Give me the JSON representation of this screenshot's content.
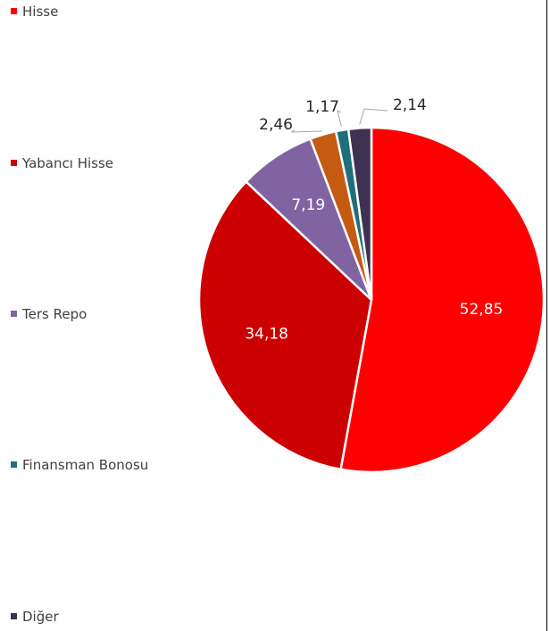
{
  "chart_data": {
    "type": "pie",
    "title": "",
    "legend_position": "left",
    "start_angle_deg": 0,
    "direction": "clockwise",
    "slices": [
      {
        "label": "Hisse",
        "value": 52.85,
        "display": "52,85",
        "color": "#ff0000",
        "label_color": "#ffffff",
        "label_place": "inside"
      },
      {
        "label": "Yabancı Hisse",
        "value": 34.18,
        "display": "34,18",
        "color": "#cc0000",
        "label_color": "#ffffff",
        "label_place": "inside"
      },
      {
        "label": "Ters Repo",
        "value": 7.19,
        "display": "7,19",
        "color": "#8064a2",
        "label_color": "#ffffff",
        "label_place": "inside"
      },
      {
        "label": "",
        "value": 2.46,
        "display": "2,46",
        "color": "#c55a11",
        "label_color": "#262626",
        "label_place": "callout"
      },
      {
        "label": "Finansman Bonosu",
        "value": 1.17,
        "display": "1,17",
        "color": "#1f6e7a",
        "label_color": "#262626",
        "label_place": "callout"
      },
      {
        "label": "Diğer",
        "value": 2.14,
        "display": "2,14",
        "color": "#3f3151",
        "label_color": "#262626",
        "label_place": "callout"
      }
    ]
  },
  "legend": {
    "items": [
      {
        "label": "Hisse",
        "color": "#ff0000"
      },
      {
        "label": "Yabancı Hisse",
        "color": "#cc0000"
      },
      {
        "label": "Ters Repo",
        "color": "#8064a2"
      },
      {
        "label": "Finansman Bonosu",
        "color": "#1f6e7a"
      },
      {
        "label": "Diğer",
        "color": "#3f3151"
      }
    ]
  }
}
